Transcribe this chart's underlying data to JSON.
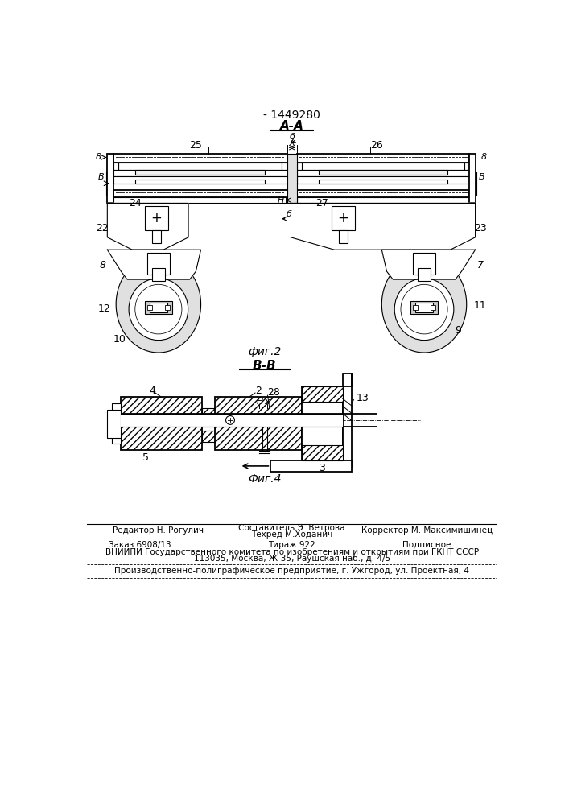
{
  "patent_number": "- 1449280",
  "background_color": "#ffffff",
  "line_color": "#000000",
  "fig_width": 7.07,
  "fig_height": 10.0,
  "dpi": 100,
  "section_aa_label": "А-А",
  "section_bb_label": "В-В",
  "fig2_label": "фиг.2",
  "fig4_label": "Фиг.4",
  "footer_editor": "Редактор Н. Рогулич",
  "footer_compiler": "Составитель Э. Ветрова",
  "footer_techred": "Техред М.Ходанич",
  "footer_corrector": "Корректор М. Максимишинец",
  "footer_order": "Заказ 6908/13",
  "footer_tirazh": "Тираж 922",
  "footer_podpisnoe": "Подписное",
  "footer_vniipи": "ВНИИПИ Государственного комитета по изобретениям и открытиям при ГКНТ СССР",
  "footer_address": "113035, Москва, Ж-35, Раушская наб., д. 4/5",
  "footer_production": "Производственно-полиграфическое предприятие, г. Ужгород, ул. Проектная, 4"
}
